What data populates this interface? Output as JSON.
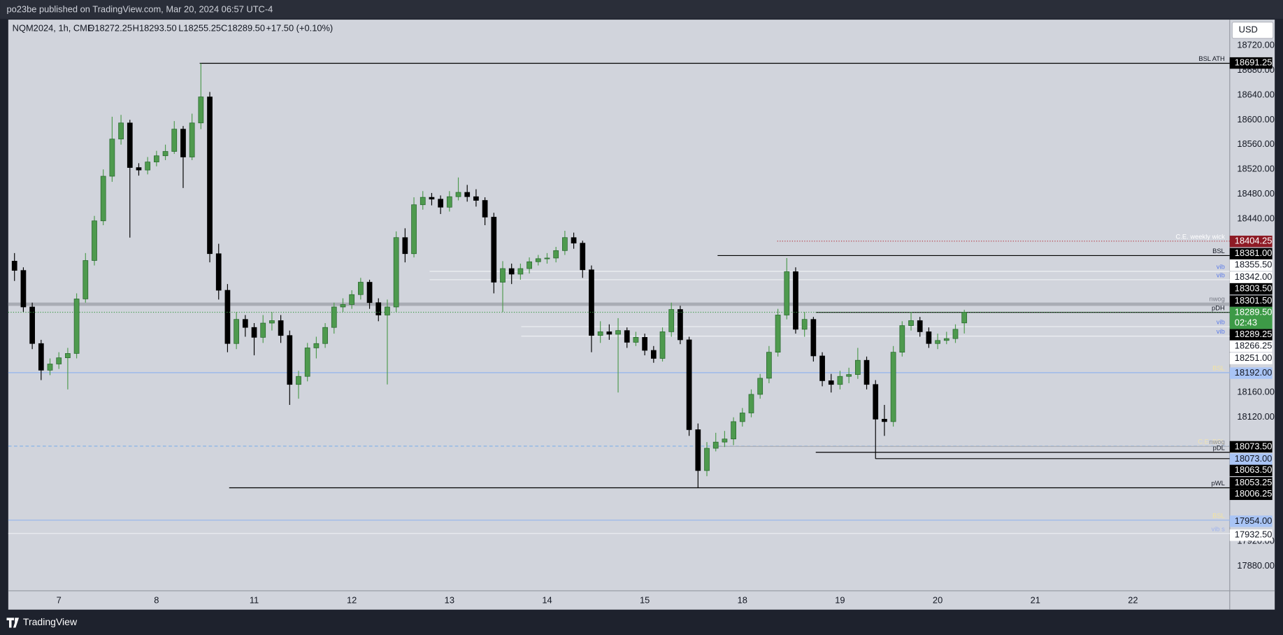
{
  "header": {
    "text": "po23be published on TradingView.com, Mar 20, 2024 06:57 UTC-4"
  },
  "footer": {
    "brand": "TradingView"
  },
  "chart_data": {
    "type": "candlestick",
    "symbol": "NQM2024, 1h, CME",
    "ohlc_labels": [
      "O18272.25",
      "H18293.50",
      "L18255.25",
      "C18289.50"
    ],
    "change": "+17.50 (+0.10%)",
    "currency": "USD",
    "up_color": "#4e9a4e",
    "down_color": "#000000",
    "candles": [
      [
        18372,
        18385,
        18340,
        18357
      ],
      [
        18357,
        18362,
        18290,
        18298
      ],
      [
        18298,
        18305,
        18230,
        18239
      ],
      [
        18239,
        18245,
        18180,
        18196
      ],
      [
        18196,
        18215,
        18188,
        18206
      ],
      [
        18206,
        18225,
        18198,
        18216
      ],
      [
        18216,
        18232,
        18165,
        18223
      ],
      [
        18223,
        18320,
        18215,
        18311
      ],
      [
        18311,
        18385,
        18305,
        18373
      ],
      [
        18373,
        18445,
        18365,
        18437
      ],
      [
        18437,
        18520,
        18430,
        18509
      ],
      [
        18509,
        18605,
        18500,
        18569
      ],
      [
        18569,
        18608,
        18560,
        18595
      ],
      [
        18595,
        18600,
        18410,
        18523
      ],
      [
        18523,
        18530,
        18510,
        18519
      ],
      [
        18519,
        18540,
        18512,
        18532
      ],
      [
        18532,
        18550,
        18525,
        18542
      ],
      [
        18542,
        18560,
        18535,
        18549
      ],
      [
        18549,
        18598,
        18545,
        18585
      ],
      [
        18585,
        18590,
        18490,
        18540
      ],
      [
        18540,
        18610,
        18535,
        18595
      ],
      [
        18595,
        18691.25,
        18585,
        18637
      ],
      [
        18637,
        18645,
        18370,
        18384
      ],
      [
        18384,
        18400,
        18310,
        18325
      ],
      [
        18325,
        18335,
        18225,
        18239
      ],
      [
        18239,
        18290,
        18230,
        18278
      ],
      [
        18278,
        18285,
        18250,
        18265
      ],
      [
        18265,
        18272,
        18220,
        18249
      ],
      [
        18249,
        18285,
        18240,
        18272
      ],
      [
        18272,
        18290,
        18260,
        18276
      ],
      [
        18276,
        18285,
        18240,
        18252
      ],
      [
        18252,
        18260,
        18140,
        18173
      ],
      [
        18173,
        18195,
        18150,
        18186
      ],
      [
        18186,
        18240,
        18178,
        18232
      ],
      [
        18232,
        18250,
        18215,
        18239
      ],
      [
        18239,
        18272,
        18232,
        18265
      ],
      [
        18265,
        18305,
        18255,
        18298
      ],
      [
        18298,
        18312,
        18290,
        18302
      ],
      [
        18302,
        18325,
        18295,
        18318
      ],
      [
        18318,
        18345,
        18310,
        18338
      ],
      [
        18338,
        18342,
        18295,
        18305
      ],
      [
        18305,
        18312,
        18275,
        18285
      ],
      [
        18285,
        18310,
        18173,
        18298
      ],
      [
        18298,
        18420,
        18290,
        18410
      ],
      [
        18410,
        18425,
        18370,
        18384
      ],
      [
        18384,
        18475,
        18378,
        18463
      ],
      [
        18463,
        18485,
        18455,
        18475
      ],
      [
        18475,
        18482,
        18462,
        18472
      ],
      [
        18472,
        18478,
        18448,
        18459
      ],
      [
        18459,
        18485,
        18452,
        18476
      ],
      [
        18476,
        18507,
        18470,
        18483
      ],
      [
        18483,
        18495,
        18468,
        18476
      ],
      [
        18476,
        18488,
        18460,
        18470
      ],
      [
        18470,
        18475,
        18430,
        18443
      ],
      [
        18443,
        18450,
        18320,
        18338
      ],
      [
        18338,
        18372,
        18290,
        18360
      ],
      [
        18360,
        18368,
        18335,
        18351
      ],
      [
        18351,
        18368,
        18342,
        18360
      ],
      [
        18360,
        18378,
        18352,
        18371
      ],
      [
        18371,
        18382,
        18365,
        18376
      ],
      [
        18376,
        18385,
        18368,
        18377
      ],
      [
        18377,
        18395,
        18370,
        18389
      ],
      [
        18389,
        18421,
        18382,
        18410
      ],
      [
        18410,
        18418,
        18392,
        18401
      ],
      [
        18401,
        18405,
        18345,
        18358
      ],
      [
        18358,
        18365,
        18225,
        18252
      ],
      [
        18252,
        18275,
        18240,
        18258
      ],
      [
        18258,
        18270,
        18245,
        18254
      ],
      [
        18254,
        18280,
        18160,
        18260
      ],
      [
        18260,
        18265,
        18232,
        18241
      ],
      [
        18241,
        18258,
        18235,
        18249
      ],
      [
        18249,
        18255,
        18220,
        18228
      ],
      [
        18228,
        18235,
        18208,
        18215
      ],
      [
        18215,
        18265,
        18210,
        18258
      ],
      [
        18258,
        18305,
        18250,
        18294
      ],
      [
        18294,
        18300,
        18238,
        18245
      ],
      [
        18245,
        18250,
        18090,
        18100
      ],
      [
        18100,
        18110,
        18006,
        18034
      ],
      [
        18034,
        18080,
        18025,
        18070
      ],
      [
        18070,
        18095,
        18065,
        18080
      ],
      [
        18080,
        18098,
        18072,
        18085
      ],
      [
        18085,
        18120,
        18075,
        18113
      ],
      [
        18113,
        18135,
        18105,
        18127
      ],
      [
        18127,
        18165,
        18120,
        18157
      ],
      [
        18157,
        18190,
        18150,
        18183
      ],
      [
        18183,
        18235,
        18175,
        18225
      ],
      [
        18225,
        18295,
        18218,
        18285
      ],
      [
        18285,
        18377,
        18278,
        18355
      ],
      [
        18355,
        18362,
        18255,
        18262
      ],
      [
        18262,
        18290,
        18250,
        18278
      ],
      [
        18278,
        18282,
        18210,
        18219
      ],
      [
        18219,
        18225,
        18170,
        18179
      ],
      [
        18179,
        18190,
        18160,
        18173
      ],
      [
        18173,
        18195,
        18165,
        18186
      ],
      [
        18186,
        18200,
        18175,
        18189
      ],
      [
        18189,
        18232,
        18182,
        18212
      ],
      [
        18212,
        18218,
        18165,
        18173
      ],
      [
        18173,
        18180,
        18053,
        18117
      ],
      [
        18117,
        18140,
        18090,
        18113
      ],
      [
        18113,
        18235,
        18105,
        18225
      ],
      [
        18225,
        18275,
        18218,
        18268
      ],
      [
        18268,
        18290,
        18260,
        18276
      ],
      [
        18276,
        18282,
        18250,
        18258
      ],
      [
        18258,
        18265,
        18232,
        18239
      ],
      [
        18239,
        18255,
        18230,
        18244
      ],
      [
        18244,
        18258,
        18238,
        18247
      ],
      [
        18247,
        18270,
        18240,
        18262
      ],
      [
        18272.25,
        18293.5,
        18255.25,
        18289.5
      ]
    ],
    "xlim": [
      -0.7,
      136.9
    ],
    "xticks": [
      {
        "value": 5,
        "label": "7"
      },
      {
        "value": 16,
        "label": "8"
      },
      {
        "value": 27,
        "label": "11"
      },
      {
        "value": 38,
        "label": "12"
      },
      {
        "value": 49,
        "label": "13"
      },
      {
        "value": 60,
        "label": "14"
      },
      {
        "value": 71,
        "label": "15"
      },
      {
        "value": 82,
        "label": "18"
      },
      {
        "value": 93,
        "label": "19"
      },
      {
        "value": 104,
        "label": "20"
      },
      {
        "value": 115,
        "label": "21"
      },
      {
        "value": 126,
        "label": "22"
      }
    ],
    "ylim": [
      17840,
      18763
    ],
    "yticks": [
      {
        "value": 18720,
        "label": "18720.00"
      },
      {
        "value": 18680,
        "label": "18680.00"
      },
      {
        "value": 18640,
        "label": "18640.00"
      },
      {
        "value": 18600,
        "label": "18600.00"
      },
      {
        "value": 18560,
        "label": "18560.00"
      },
      {
        "value": 18520,
        "label": "18520.00"
      },
      {
        "value": 18480,
        "label": "18480.00"
      },
      {
        "value": 18440,
        "label": "18440.00"
      },
      {
        "value": 18160,
        "label": "18160.00"
      },
      {
        "value": 18120,
        "label": "18120.00"
      },
      {
        "value": 17920,
        "label": "17920.00"
      },
      {
        "value": 17880,
        "label": "17880.00"
      }
    ],
    "last_price": {
      "value": 18289.5,
      "label": "18289.50",
      "countdown": "02:43",
      "color": "#3d9a47"
    },
    "levels": [
      {
        "price": 18691.25,
        "label": "18691.25",
        "text": "BSL ATH",
        "color": "#000000",
        "style": "solid",
        "label_bg": "#000000",
        "label_fg": "#ffffff",
        "text_color": "#131722"
      },
      {
        "price": 18404.25,
        "label": "18404.25",
        "text": "C.E. weekly wick",
        "color": "#b22833",
        "style": "dotted",
        "label_bg": "#8e1b25",
        "label_fg": "#ffffff",
        "text_color": "#ffffff"
      },
      {
        "price": 18381,
        "label": "18381.00",
        "text": "BSL",
        "color": "#000000",
        "style": "solid",
        "label_bg": "#000000",
        "label_fg": "#ffffff",
        "text_color": "#131722"
      },
      {
        "price": 18355.5,
        "label": "18355.50",
        "text": "vib",
        "color": "#eef0f4",
        "style": "solid",
        "label_bg": "#ffffff",
        "label_fg": "#131722",
        "text_color": "#5b7be8"
      },
      {
        "price": 18342,
        "label": "18342.00",
        "text": "vib",
        "color": "#eef0f4",
        "style": "solid",
        "label_bg": "#ffffff",
        "label_fg": "#131722",
        "text_color": "#5b7be8"
      },
      {
        "price": 18303.5,
        "label": "18303.50",
        "text": "nwog",
        "color": "#a9acb4",
        "style": "thick",
        "label_bg": "#000000",
        "label_fg": "#ffffff",
        "text_color": "#787b86"
      },
      {
        "price": 18301.5,
        "label": "18301.50",
        "color": "#a9acb4",
        "style": "thick",
        "label_bg": "#000000",
        "label_fg": "#ffffff"
      },
      {
        "price": 18289.25,
        "label": "18289.25",
        "text": "pDH",
        "color": "#000000",
        "style": "solid",
        "label_bg": "#000000",
        "label_fg": "#ffffff",
        "text_color": "#131722"
      },
      {
        "price": 18266.25,
        "label": "18266.25",
        "text": "vib",
        "color": "#eef0f4",
        "style": "solid",
        "label_bg": "#ffffff",
        "label_fg": "#131722",
        "text_color": "#5b7be8"
      },
      {
        "price": 18251,
        "label": "18251.00",
        "text": "vib",
        "color": "#eef0f4",
        "style": "solid",
        "label_bg": "#ffffff",
        "label_fg": "#131722",
        "text_color": "#5b7be8"
      },
      {
        "price": 18192,
        "label": "18192.00",
        "text": "BSL",
        "color": "#94b4ec",
        "style": "solid",
        "label_bg": "#a9c4f5",
        "label_fg": "#131722",
        "text_color": "#f3e3a0"
      },
      {
        "price": 18073.5,
        "label": "18073.50",
        "text": "C.E. BSL",
        "color": "#7fb0e8",
        "style": "dashed",
        "label_bg": "#000000",
        "label_fg": "#ffffff",
        "text_color": "#efe3b4"
      },
      {
        "price": 18073,
        "label": "18073.00",
        "text": "nwog",
        "color": "#a9acb4",
        "style": "solid",
        "label_bg": "#a9c4f5",
        "label_fg": "#131722",
        "text_color": "#8a8d95"
      },
      {
        "price": 18063.5,
        "label": "18063.50",
        "text": "pDL",
        "color": "#000000",
        "style": "solid",
        "label_bg": "#000000",
        "label_fg": "#ffffff",
        "text_color": "#131722"
      },
      {
        "price": 18053.25,
        "label": "18053.25",
        "color": "#000000",
        "style": "solid",
        "label_bg": "#000000",
        "label_fg": "#ffffff"
      },
      {
        "price": 18006.25,
        "label": "18006.25",
        "text": "pWL",
        "color": "#000000",
        "style": "solid",
        "label_bg": "#000000",
        "label_fg": "#ffffff",
        "text_color": "#131722"
      },
      {
        "price": 17954,
        "label": "17954.00",
        "text": "BSL",
        "color": "#94b4ec",
        "style": "solid",
        "label_bg": "#a9c4f5",
        "label_fg": "#131722",
        "text_color": "#f3e3a0"
      },
      {
        "price": 17932.5,
        "label": "17932.50",
        "text": "vib s",
        "color": "#eef0f4",
        "style": "solid",
        "label_bg": "#ffffff",
        "label_fg": "#131722",
        "text_color": "#9fb3ee"
      }
    ]
  }
}
